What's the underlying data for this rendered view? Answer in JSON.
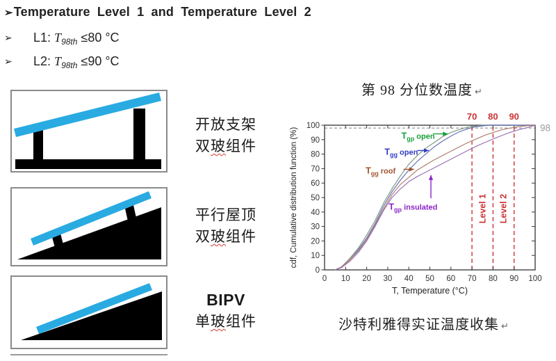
{
  "slide": {
    "bullet_char": "➢",
    "heading": "Temperature Level 1 and Temperature Level 2",
    "levels": [
      {
        "name": "L1:",
        "var": "T",
        "sub": "98th",
        "cond": "≤80 °C"
      },
      {
        "name": "L2:",
        "var": "T",
        "sub": "98th",
        "cond": "≤90 °C"
      }
    ]
  },
  "configs": [
    {
      "id": "open-rack",
      "lines": [
        {
          "text": "开放支架"
        },
        {
          "text": "双玻组件",
          "wavy": "玻"
        }
      ]
    },
    {
      "id": "parallel-roof",
      "lines": [
        {
          "text": "平行屋顶"
        },
        {
          "text": "双玻组件",
          "wavy": "玻"
        }
      ]
    },
    {
      "id": "bipv",
      "lines": [
        {
          "text": "BIPV",
          "bold": true
        },
        {
          "text": "单玻组件",
          "wavy": "玻"
        }
      ]
    }
  ],
  "colors": {
    "panel_blue": "#29abe2",
    "structure_black": "#000000",
    "box_border": "#8a8a8a",
    "level_red": "#cc3333",
    "gray_line": "#9a9a9a",
    "wavy_red": "#d23b2e",
    "axis": "#333333"
  },
  "chart_title": {
    "text": "第 98 分位数温度",
    "mark": "↵"
  },
  "chart_caption": {
    "text": "沙特利雅得实证温度收集",
    "mark": "↵"
  },
  "chart_data": {
    "type": "line",
    "title": "第 98 分位数温度",
    "xlabel": "T, Temperature (°C)",
    "ylabel": "cdf, Cumulative distribution function (%)",
    "xlim": [
      0,
      100
    ],
    "ylim": [
      0,
      100
    ],
    "xticks": [
      0,
      10,
      20,
      30,
      40,
      50,
      60,
      70,
      80,
      90,
      100
    ],
    "yticks": [
      0,
      10,
      20,
      30,
      40,
      50,
      60,
      70,
      80,
      90,
      100
    ],
    "grid": false,
    "legend": "inline-annotations",
    "hline": {
      "value": 98,
      "label": "98",
      "color": "#9a9a9a",
      "style": "dashed"
    },
    "vlines": [
      {
        "value": 70,
        "label": "70"
      },
      {
        "value": 80,
        "label": "80"
      },
      {
        "value": 90,
        "label": "90"
      }
    ],
    "vline_color": "#cc3333",
    "zone_labels": [
      {
        "text": "Level 1",
        "x": 75,
        "y": 50
      },
      {
        "text": "Level 2",
        "x": 85,
        "y": 50
      }
    ],
    "series": [
      {
        "name": "Tgp open",
        "sub": "gp",
        "rest": " open",
        "curve_color": "#7d9b7d",
        "label_color": "#17a03a",
        "label_at": [
          36.5,
          92.5
        ],
        "arrow": {
          "from": [
            51.5,
            94
          ],
          "to": [
            58.5,
            94
          ],
          "dir": "right"
        },
        "points": [
          [
            5,
            0
          ],
          [
            8,
            2
          ],
          [
            12,
            8
          ],
          [
            16,
            15
          ],
          [
            20,
            24
          ],
          [
            24,
            34
          ],
          [
            28,
            46
          ],
          [
            32,
            56
          ],
          [
            36,
            65
          ],
          [
            40,
            73
          ],
          [
            44,
            79
          ],
          [
            48,
            84
          ],
          [
            52,
            88
          ],
          [
            56,
            92
          ],
          [
            60,
            95
          ],
          [
            64,
            97
          ],
          [
            68,
            98.6
          ],
          [
            72,
            99.5
          ],
          [
            76,
            100
          ],
          [
            100,
            100
          ]
        ]
      },
      {
        "name": "Tgg open",
        "sub": "gg",
        "rest": " open",
        "curve_color": "#6670b8",
        "label_color": "#2f3fbf",
        "label_at": [
          28.5,
          81.5
        ],
        "arrow": {
          "from": [
            44,
            82.5
          ],
          "to": [
            49.5,
            82.5
          ],
          "dir": "right"
        },
        "points": [
          [
            5,
            0
          ],
          [
            8,
            2
          ],
          [
            12,
            7
          ],
          [
            16,
            14
          ],
          [
            20,
            22
          ],
          [
            24,
            32
          ],
          [
            28,
            44
          ],
          [
            32,
            54
          ],
          [
            36,
            62
          ],
          [
            40,
            69
          ],
          [
            44,
            75
          ],
          [
            48,
            80
          ],
          [
            52,
            85
          ],
          [
            56,
            89
          ],
          [
            60,
            92.5
          ],
          [
            64,
            95.5
          ],
          [
            68,
            97.5
          ],
          [
            72,
            99
          ],
          [
            78,
            100
          ],
          [
            100,
            100
          ]
        ]
      },
      {
        "name": "Tgg roof",
        "sub": "gg",
        "rest": " roof",
        "curve_color": "#b08070",
        "label_color": "#a0522d",
        "label_at": [
          19.5,
          68.5
        ],
        "arrow": {
          "from": [
            37.5,
            69.5
          ],
          "to": [
            42.5,
            69.5
          ],
          "dir": "right"
        },
        "points": [
          [
            5,
            0
          ],
          [
            8,
            2
          ],
          [
            12,
            7
          ],
          [
            16,
            13
          ],
          [
            20,
            21
          ],
          [
            24,
            31
          ],
          [
            28,
            42
          ],
          [
            32,
            52
          ],
          [
            36,
            59
          ],
          [
            40,
            64
          ],
          [
            44,
            69
          ],
          [
            48,
            72.5
          ],
          [
            52,
            76
          ],
          [
            56,
            79
          ],
          [
            60,
            82
          ],
          [
            64,
            85
          ],
          [
            68,
            88
          ],
          [
            72,
            90.5
          ],
          [
            76,
            93
          ],
          [
            80,
            95
          ],
          [
            84,
            96.8
          ],
          [
            88,
            98
          ],
          [
            92,
            99
          ],
          [
            96,
            99.6
          ],
          [
            100,
            100
          ]
        ]
      },
      {
        "name": "Tgp insulated",
        "sub": "gp",
        "rest": " insulated",
        "curve_color": "#9a70b5",
        "label_color": "#8b25c9",
        "label_at": [
          30.5,
          43.5
        ],
        "arrow": {
          "from": [
            50.5,
            49.5
          ],
          "to": [
            50.5,
            65.5
          ],
          "dir": "up"
        },
        "points": [
          [
            5,
            0
          ],
          [
            8,
            1.5
          ],
          [
            12,
            6
          ],
          [
            16,
            12
          ],
          [
            20,
            20
          ],
          [
            24,
            30
          ],
          [
            28,
            41
          ],
          [
            32,
            50
          ],
          [
            36,
            56
          ],
          [
            40,
            61
          ],
          [
            44,
            64.5
          ],
          [
            48,
            67.5
          ],
          [
            52,
            70.5
          ],
          [
            56,
            73.5
          ],
          [
            60,
            76.5
          ],
          [
            64,
            79.5
          ],
          [
            68,
            82.5
          ],
          [
            72,
            85.5
          ],
          [
            76,
            88
          ],
          [
            80,
            90.5
          ],
          [
            84,
            92.8
          ],
          [
            88,
            95
          ],
          [
            92,
            96.8
          ],
          [
            96,
            98.2
          ],
          [
            100,
            100
          ]
        ]
      }
    ]
  }
}
